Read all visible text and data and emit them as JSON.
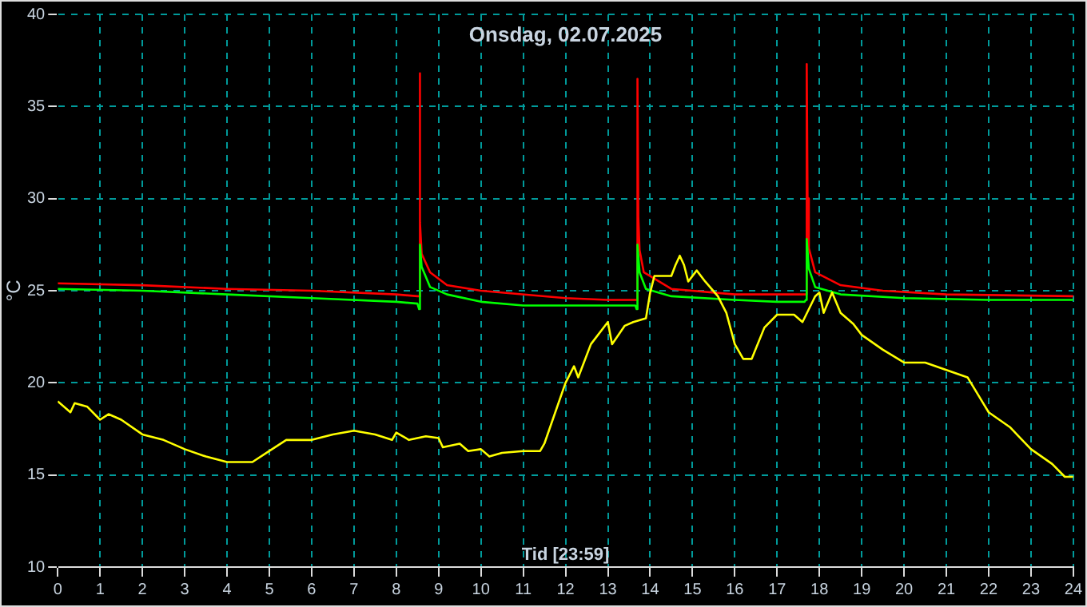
{
  "chart_data": {
    "type": "line",
    "title": "Onsdag, 02.07.2025",
    "xlabel": "Tid [23:59]",
    "ylabel": "°C",
    "xlim": [
      0,
      24
    ],
    "xticks": [
      0,
      1,
      2,
      3,
      4,
      5,
      6,
      7,
      8,
      9,
      10,
      11,
      12,
      13,
      14,
      15,
      16,
      17,
      18,
      19,
      20,
      21,
      22,
      23,
      24
    ],
    "ylim": [
      10,
      40
    ],
    "yticks": [
      10,
      15,
      20,
      25,
      30,
      35,
      40
    ],
    "grid": true,
    "legend": false,
    "marker": "none",
    "line_style": "solid",
    "series": [
      {
        "color": "#ffff00",
        "x": [
          0,
          0.3,
          0.4,
          0.7,
          1.0,
          1.2,
          1.5,
          2,
          2.5,
          3,
          3.5,
          4,
          4.6,
          5,
          5.4,
          6,
          6.5,
          7,
          7.5,
          7.9,
          8,
          8.3,
          8.7,
          9,
          9.1,
          9.5,
          9.7,
          10,
          10.2,
          10.5,
          11,
          11.4,
          11.5,
          12,
          12.2,
          12.3,
          12.6,
          13,
          13.1,
          13.4,
          13.6,
          13.9,
          14.0,
          14.1,
          14.5,
          14.6,
          14.7,
          14.8,
          14.9,
          15.1,
          15.3,
          15.6,
          15.8,
          16.0,
          16.2,
          16.4,
          16.7,
          17.0,
          17.4,
          17.6,
          17.9,
          18.0,
          18.1,
          18.3,
          18.5,
          18.8,
          19,
          19.5,
          20,
          20.5,
          21,
          21.5,
          22,
          22.5,
          23,
          23.5,
          23.8,
          24
        ],
        "values": [
          19.0,
          18.4,
          18.9,
          18.7,
          18.0,
          18.3,
          18.0,
          17.2,
          16.9,
          16.4,
          16.0,
          15.7,
          15.7,
          16.3,
          16.9,
          16.9,
          17.2,
          17.4,
          17.2,
          16.9,
          17.3,
          16.9,
          17.1,
          17.0,
          16.5,
          16.7,
          16.3,
          16.4,
          16.0,
          16.2,
          16.3,
          16.3,
          16.7,
          20.0,
          20.9,
          20.3,
          22.1,
          23.3,
          22.1,
          23.1,
          23.3,
          23.5,
          24.9,
          25.8,
          25.8,
          26.4,
          26.9,
          26.4,
          25.5,
          26.1,
          25.5,
          24.7,
          23.8,
          22.1,
          21.3,
          21.3,
          23.0,
          23.7,
          23.7,
          23.3,
          24.7,
          24.9,
          23.8,
          24.9,
          23.8,
          23.2,
          22.6,
          21.8,
          21.1,
          21.1,
          20.7,
          20.3,
          18.4,
          17.6,
          16.4,
          15.6,
          14.9,
          14.9
        ]
      },
      {
        "color": "#00ff00",
        "x": [
          0,
          2,
          4,
          6,
          8,
          8.5,
          8.54,
          8.56,
          8.6,
          8.8,
          9.2,
          10,
          11,
          12,
          13,
          13.65,
          13.68,
          13.7,
          13.75,
          13.9,
          14.5,
          16,
          17,
          17.65,
          17.68,
          17.7,
          17.75,
          17.9,
          18.5,
          20,
          22,
          24
        ],
        "values": [
          25.1,
          25.0,
          24.8,
          24.6,
          24.4,
          24.3,
          24.0,
          27.5,
          26.3,
          25.2,
          24.8,
          24.4,
          24.2,
          24.2,
          24.2,
          24.2,
          24.0,
          27.5,
          26.0,
          25.1,
          24.7,
          24.5,
          24.4,
          24.4,
          24.5,
          27.8,
          26.2,
          25.2,
          24.8,
          24.6,
          24.5,
          24.5
        ]
      },
      {
        "color": "#ff0000",
        "x": [
          0,
          2,
          4,
          6,
          8,
          8.5,
          8.54,
          8.55,
          8.57,
          8.6,
          8.8,
          9.2,
          10,
          12,
          13,
          13.65,
          13.68,
          13.7,
          13.72,
          13.75,
          13.85,
          14.5,
          16,
          17,
          17.65,
          17.68,
          17.7,
          17.72,
          17.75,
          17.9,
          18.5,
          19.5,
          21,
          24
        ],
        "values": [
          25.4,
          25.3,
          25.1,
          25.0,
          24.8,
          24.7,
          24.7,
          36.8,
          28.7,
          27.0,
          26.0,
          25.3,
          25.0,
          24.6,
          24.5,
          24.5,
          24.5,
          36.5,
          29.0,
          27.2,
          26.0,
          25.1,
          24.8,
          24.8,
          24.8,
          24.8,
          37.3,
          30.0,
          27.3,
          26.0,
          25.3,
          25.0,
          24.8,
          24.7
        ]
      }
    ]
  }
}
